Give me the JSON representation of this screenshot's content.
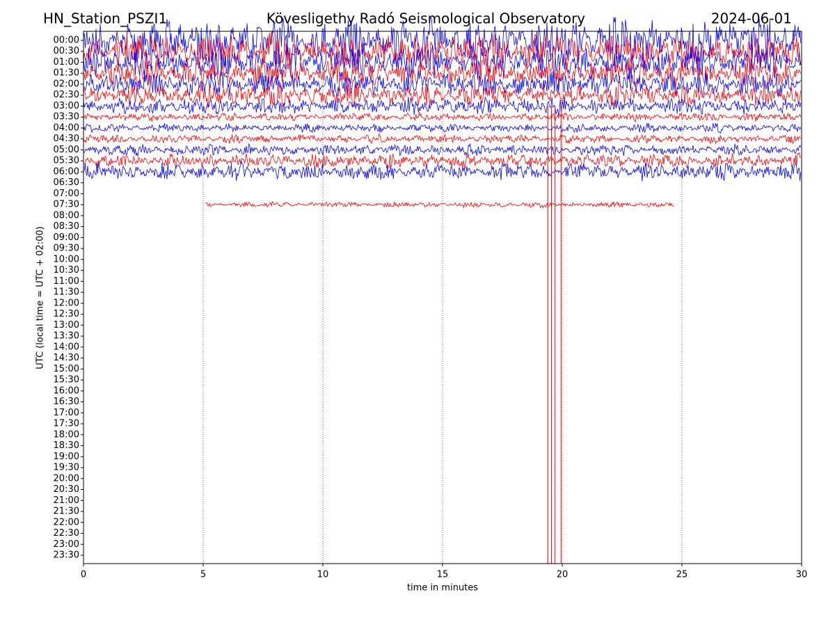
{
  "chart_data": {
    "type": "helicorder",
    "station": "HN_Station_PSZI1",
    "title": "Kövesligethy Radó Seismological Observatory",
    "date": "2024-06-01",
    "xlabel": "time in minutes",
    "ylabel": "UTC (local time = UTC + 02:00)",
    "xlim": [
      0,
      30
    ],
    "xticks": [
      0,
      5,
      10,
      15,
      20,
      25,
      30
    ],
    "categories": [
      "00:00",
      "00:30",
      "01:00",
      "01:30",
      "02:00",
      "02:30",
      "03:00",
      "03:30",
      "04:00",
      "04:30",
      "05:00",
      "05:30",
      "06:00",
      "06:30",
      "07:00",
      "07:30",
      "08:00",
      "08:30",
      "09:00",
      "09:30",
      "10:00",
      "10:30",
      "11:00",
      "11:30",
      "12:00",
      "12:30",
      "13:00",
      "13:30",
      "14:00",
      "14:30",
      "15:00",
      "15:30",
      "16:00",
      "16:30",
      "17:00",
      "17:30",
      "18:00",
      "18:30",
      "19:00",
      "19:30",
      "20:00",
      "20:30",
      "21:00",
      "21:30",
      "22:00",
      "22:30",
      "23:00",
      "23:30"
    ],
    "traces": [
      {
        "start": 0,
        "end": 30,
        "amplitude": 1.6,
        "color": "#0000ff"
      },
      {
        "start": 0,
        "end": 30,
        "amplitude": 1.3,
        "color": "#ff0000"
      },
      {
        "start": 0,
        "end": 30,
        "amplitude": 1.2,
        "color": "#0000ff"
      },
      {
        "start": 0,
        "end": 30,
        "amplitude": 1.0,
        "color": "#ff0000"
      },
      {
        "start": 0,
        "end": 30,
        "amplitude": 0.9,
        "color": "#0000ff"
      },
      {
        "start": 0,
        "end": 30,
        "amplitude": 0.8,
        "color": "#ff0000"
      },
      {
        "start": 0,
        "end": 30,
        "amplitude": 0.6,
        "color": "#0000ff"
      },
      {
        "start": 0,
        "end": 30,
        "amplitude": 0.3,
        "color": "#ff0000"
      },
      {
        "start": 0,
        "end": 30,
        "amplitude": 0.3,
        "color": "#0000ff"
      },
      {
        "start": 0,
        "end": 30,
        "amplitude": 0.3,
        "color": "#ff0000"
      },
      {
        "start": 0,
        "end": 30,
        "amplitude": 0.4,
        "color": "#0000ff"
      },
      {
        "start": 0,
        "end": 30,
        "amplitude": 0.5,
        "color": "#ff0000"
      },
      {
        "start": 0,
        "end": 30,
        "amplitude": 0.6,
        "color": "#0000ff"
      },
      null,
      null,
      {
        "start": 5.1,
        "end": 24.7,
        "amplitude": 0.2,
        "color": "#ff0000"
      },
      null,
      null,
      null,
      null,
      null,
      null,
      null,
      null,
      null,
      null,
      null,
      null,
      null,
      null,
      null,
      null,
      null,
      null,
      null,
      null,
      null,
      null,
      null,
      null,
      null,
      null,
      null,
      null,
      null,
      null,
      null,
      null
    ],
    "spikes": [
      {
        "x": 19.4,
        "color": "#ff0000"
      },
      {
        "x": 19.55,
        "color": "#ff0000"
      },
      {
        "x": 19.7,
        "color": "#ff0000"
      },
      {
        "x": 19.95,
        "color": "#ff0000"
      }
    ],
    "grid": true
  }
}
